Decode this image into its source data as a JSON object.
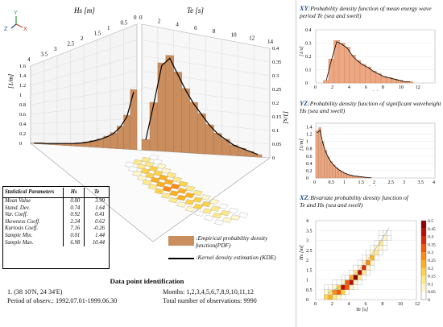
{
  "chart_data": [
    {
      "type": "bar",
      "panel": "3d",
      "x_axis_title": "Hs [m]",
      "x_ticks": [
        "4",
        "3.5",
        "3",
        "2.5",
        "2",
        "1.5",
        "1",
        "0.5",
        "0"
      ],
      "t_axis_title": "Te [s]",
      "t_ticks": [
        "0",
        "2",
        "4",
        "6",
        "8",
        "10",
        "12",
        "14"
      ],
      "z_label_left": "[1/m]",
      "z_ticks_left": [
        "1.6",
        "1.4",
        "1.2",
        "1",
        "0.8",
        "0.6",
        "0.4",
        "0.2",
        "0"
      ],
      "z_label_right": "[1/s]",
      "z_ticks_right": [
        "0.4",
        "0.35",
        "0.3",
        "0.25",
        "0.2",
        "0.15",
        "0.1",
        "0.05",
        "0"
      ],
      "axis_letters": [
        "Y",
        "Z",
        "X"
      ],
      "hs_pdf_values": [
        1.38,
        0.78,
        0.52,
        0.36,
        0.27,
        0.2,
        0.15,
        0.11,
        0.08,
        0.06,
        0.05,
        0.04,
        0.03,
        0.02,
        0.02,
        0.01
      ],
      "te_pdf_values": [
        0.04,
        0.18,
        0.33,
        0.36,
        0.3,
        0.24,
        0.19,
        0.15,
        0.11,
        0.08,
        0.06,
        0.04,
        0.03,
        0.02,
        0.01
      ]
    },
    {
      "type": "bar",
      "panel": "XY",
      "tag": "XY",
      "title": ":Probability density function of mean energy wave period",
      "title_var": "Te",
      "title_tail": "(sea and swell)",
      "xlabel": "Te [s]",
      "ylabel": "[1/s]",
      "xlim": [
        0,
        12
      ],
      "ylim": [
        0,
        0.4
      ],
      "x_ticks": [
        "0",
        "2",
        "4",
        "6",
        "8",
        "10",
        "12"
      ],
      "y_ticks": [
        "0",
        "0.1",
        "0.2",
        "0.3",
        "0.4"
      ],
      "values": [
        0.02,
        0.18,
        0.32,
        0.3,
        0.27,
        0.21,
        0.17,
        0.14,
        0.12,
        0.09,
        0.07,
        0.05,
        0.04,
        0.03,
        0.02,
        0.01,
        0.01
      ]
    },
    {
      "type": "bar",
      "panel": "YZ",
      "tag": "YZ",
      "title": ":Probability density function of significant waveheight",
      "title_var": "Hs",
      "title_tail": "(sea and swell)",
      "xlabel": "Hs [m]",
      "ylabel": "[1/m]",
      "xlim": [
        0,
        4
      ],
      "ylim": [
        0,
        1.5
      ],
      "x_ticks": [
        "0",
        "0.5",
        "1",
        "1.5",
        "2",
        "2.5",
        "3",
        "3.5",
        "4"
      ],
      "y_ticks": [
        "0",
        "0.2",
        "0.4",
        "0.6",
        "0.8",
        "1",
        "1.2",
        "1.4"
      ],
      "values": [
        1.3,
        1.38,
        1.0,
        0.76,
        0.58,
        0.45,
        0.36,
        0.28,
        0.22,
        0.17,
        0.13,
        0.1,
        0.08,
        0.06,
        0.05,
        0.04,
        0.03,
        0.02,
        0.015,
        0.01
      ]
    },
    {
      "type": "heatmap",
      "panel": "XZ",
      "tag": "XZ",
      "title": ":Bivariate probability density function of",
      "title_line2_a": "Te",
      "title_line2_b": "and",
      "title_line2_c": "Hs",
      "title_tail": "(sea and swell)",
      "xlabel": "Te [s]",
      "ylabel": "Hs [m]",
      "xlim": [
        0,
        12
      ],
      "ylim": [
        0,
        4
      ],
      "x_ticks": [
        "0",
        "2",
        "4",
        "6",
        "8",
        "10",
        "12"
      ],
      "y_ticks": [
        "0",
        "0.5",
        "1",
        "1.5",
        "2",
        "2.5",
        "3",
        "3.5",
        "4"
      ],
      "colorbar_ticks": [
        "0",
        "0.05",
        "0.1",
        "0.15",
        "0.2",
        "0.25",
        "0.3",
        "0.35",
        "0.4",
        "0.45",
        "0.5"
      ],
      "colorbar_colors": [
        "#ffffff",
        "#fff6c9",
        "#ffe98a",
        "#ffd24a",
        "#ffb020",
        "#ff8a10",
        "#f25a08",
        "#d92b06",
        "#b80d05",
        "#8f0000"
      ]
    }
  ],
  "legend": {
    "pdf_label": ":Empirical probability density function(PDF)",
    "kde_label": ":Kernel density estimation (KDE)",
    "bar_color": "#c98d5e",
    "line_color": "#000000"
  },
  "stats": {
    "header": "Statistical Parameters",
    "col_hs": "Hs",
    "col_te": "Te",
    "rows": [
      {
        "name": "Mean Value",
        "hs": "0.80",
        "te": "3.99"
      },
      {
        "name": "Stand. Dev.",
        "hs": "0.74",
        "te": "1.64"
      },
      {
        "name": "Var. Coeff.",
        "hs": "0.92",
        "te": "0.41"
      },
      {
        "name": "Skewness Coeff.",
        "hs": "2.24",
        "te": "0.62"
      },
      {
        "name": "Kurtosis Coeff.",
        "hs": "7.16",
        "te": "-0.26"
      },
      {
        "name": "Sample Min.",
        "hs": "0.01",
        "te": "1.44"
      },
      {
        "name": "Sample Max.",
        "hs": "6.98",
        "te": "10.44"
      }
    ]
  },
  "info": {
    "title": "Data point identification",
    "point": "1. (38  10'N, 24  34'E)",
    "months": "Months: 1,2,3,4,5,6,7,8,9,10,11,12",
    "period": "Period of observ.: 1992.07.01-1999.06.30",
    "total": "Total number of observations: 9990"
  }
}
